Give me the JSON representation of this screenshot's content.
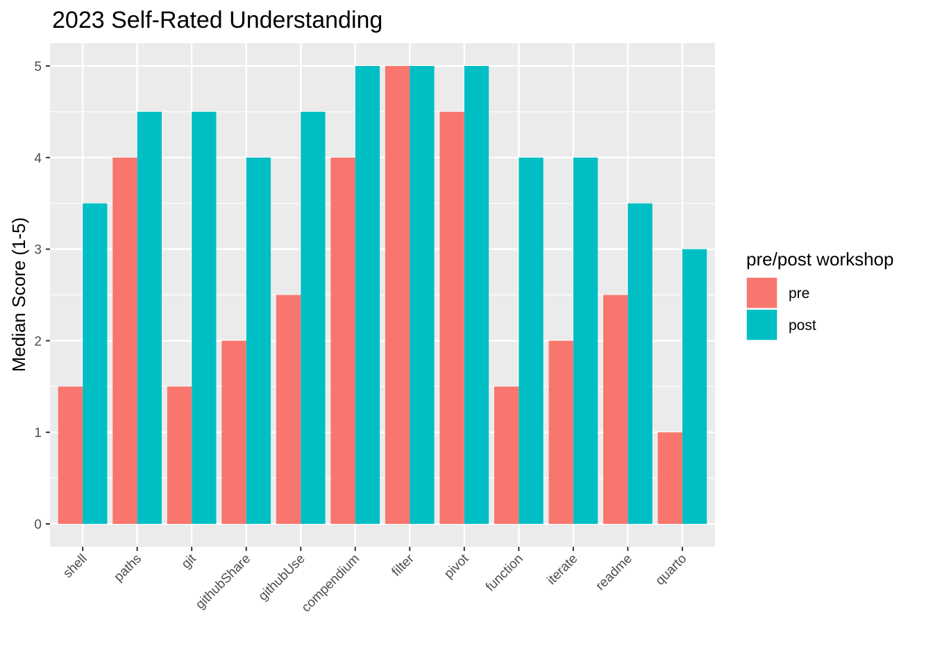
{
  "chart_data": {
    "type": "bar",
    "title": "2023 Self-Rated Understanding",
    "xlabel": "",
    "ylabel": "Median Score (1-5)",
    "ylim": [
      -0.25,
      5.25
    ],
    "yticks": [
      0,
      1,
      2,
      3,
      4,
      5
    ],
    "grid": true,
    "categories": [
      "shell",
      "paths",
      "git",
      "githubShare",
      "githubUse",
      "compendium",
      "filter",
      "pivot",
      "function",
      "iterate",
      "readme",
      "quarto"
    ],
    "series": [
      {
        "name": "pre",
        "color": "#F8766D",
        "values": [
          1.5,
          4,
          1.5,
          2,
          2.5,
          4,
          5,
          4.5,
          1.5,
          2,
          2.5,
          1
        ]
      },
      {
        "name": "post",
        "color": "#00BFC4",
        "values": [
          3.5,
          4.5,
          4.5,
          4,
          4.5,
          5,
          5,
          5,
          4,
          4,
          3.5,
          3
        ]
      }
    ],
    "legend": {
      "title": "pre/post workshop",
      "position": "right"
    },
    "colors": {
      "panel": "#EBEBEB",
      "grid": "#FFFFFF"
    }
  }
}
